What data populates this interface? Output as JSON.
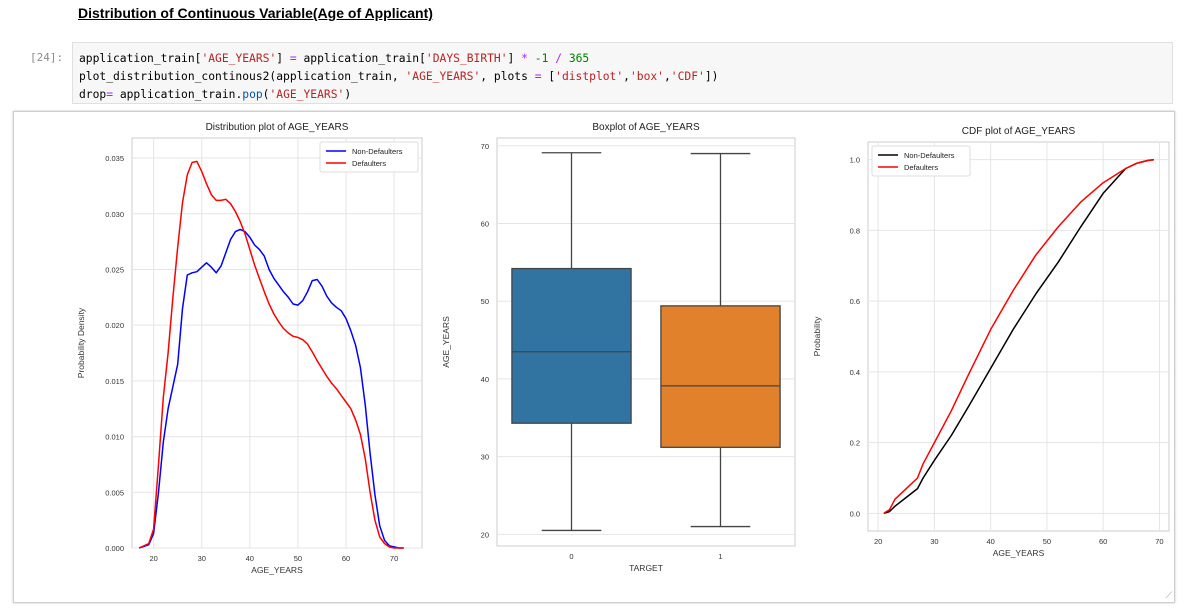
{
  "notebook": {
    "heading": "Distribution of Continuous Variable(Age of Applicant)",
    "prompt": "[24]:",
    "code_lines": [
      [
        [
          "application_train[",
          ""
        ],
        [
          "'AGE_YEARS'",
          "s"
        ],
        [
          "] ",
          ""
        ],
        [
          "=",
          "o"
        ],
        [
          " application_train[",
          ""
        ],
        [
          "'DAYS_BIRTH'",
          "s"
        ],
        [
          "] ",
          ""
        ],
        [
          "*",
          "o"
        ],
        [
          " ",
          ""
        ],
        [
          "-1",
          "n"
        ],
        [
          " ",
          ""
        ],
        [
          "/",
          "o"
        ],
        [
          " ",
          ""
        ],
        [
          "365",
          "n"
        ]
      ],
      [
        [
          "plot_distribution_continous2(application_train, ",
          ""
        ],
        [
          "'AGE_YEARS'",
          "s"
        ],
        [
          ", plots ",
          ""
        ],
        [
          "=",
          "o"
        ],
        [
          " [",
          ""
        ],
        [
          "'distplot'",
          "s"
        ],
        [
          ",",
          ""
        ],
        [
          "'box'",
          "s"
        ],
        [
          ",",
          ""
        ],
        [
          "'CDF'",
          "s"
        ],
        [
          "])",
          ""
        ]
      ],
      [
        [
          "drop",
          ""
        ],
        [
          "=",
          "o"
        ],
        [
          " application_train.",
          ""
        ],
        [
          "pop",
          "f"
        ],
        [
          "(",
          ""
        ],
        [
          "'AGE_YEARS'",
          "s"
        ],
        [
          ")",
          ""
        ]
      ]
    ]
  },
  "chart_data": [
    {
      "type": "line",
      "title": "Distribution plot of AGE_YEARS",
      "xlabel": "AGE_YEARS",
      "ylabel": "Probability Density",
      "xlim": [
        15.5,
        75.8
      ],
      "ylim": [
        0,
        0.0368
      ],
      "xticks": [
        20,
        30,
        40,
        50,
        60,
        70
      ],
      "yticks": [
        0.0,
        0.005,
        0.01,
        0.015,
        0.02,
        0.025,
        0.03,
        0.035
      ],
      "ytick_labels": [
        "0.000",
        "0.005",
        "0.010",
        "0.015",
        "0.020",
        "0.025",
        "0.030",
        "0.035"
      ],
      "grid": true,
      "legend": "top-right",
      "series": [
        {
          "name": "Non-Defaulters",
          "color": "#0000ff",
          "x": [
            17,
            19,
            20,
            21,
            22,
            23,
            24,
            25,
            26,
            27,
            28,
            29,
            30,
            31,
            32,
            33,
            34,
            35,
            36,
            37,
            38,
            39,
            40,
            41,
            42,
            43,
            44,
            45,
            46,
            47,
            48,
            49,
            50,
            51,
            52,
            53,
            54,
            55,
            56,
            57,
            58,
            59,
            60,
            61,
            62,
            63,
            64,
            65,
            66,
            67,
            68,
            69,
            70,
            71,
            72
          ],
          "y": [
            0,
            0.0003,
            0.0013,
            0.005,
            0.0095,
            0.0125,
            0.0145,
            0.0165,
            0.0215,
            0.0245,
            0.0247,
            0.0248,
            0.0252,
            0.0256,
            0.0252,
            0.0247,
            0.0253,
            0.0265,
            0.0277,
            0.0284,
            0.0286,
            0.0284,
            0.0279,
            0.0272,
            0.0268,
            0.0262,
            0.025,
            0.0242,
            0.0236,
            0.023,
            0.0225,
            0.0219,
            0.0218,
            0.0222,
            0.023,
            0.024,
            0.0241,
            0.0235,
            0.0226,
            0.022,
            0.0216,
            0.0213,
            0.0206,
            0.0195,
            0.0182,
            0.0162,
            0.0128,
            0.0085,
            0.0048,
            0.002,
            0.0007,
            0.0002,
            0.0001,
            0,
            0
          ]
        },
        {
          "name": "Defaulters",
          "color": "#ff0000",
          "x": [
            17,
            19,
            20,
            21,
            22,
            23,
            24,
            25,
            26,
            27,
            28,
            29,
            30,
            31,
            32,
            33,
            34,
            35,
            36,
            37,
            38,
            39,
            40,
            41,
            42,
            43,
            44,
            45,
            46,
            47,
            48,
            49,
            50,
            51,
            52,
            53,
            54,
            55,
            56,
            57,
            58,
            59,
            60,
            61,
            62,
            63,
            64,
            65,
            66,
            67,
            68,
            69,
            70,
            71,
            72
          ],
          "y": [
            0,
            0.0004,
            0.0017,
            0.0075,
            0.0135,
            0.0175,
            0.0225,
            0.027,
            0.031,
            0.0335,
            0.0346,
            0.0347,
            0.0338,
            0.0327,
            0.0317,
            0.0312,
            0.0312,
            0.0313,
            0.0309,
            0.0302,
            0.0293,
            0.0282,
            0.0268,
            0.0254,
            0.0242,
            0.023,
            0.0219,
            0.021,
            0.0203,
            0.0197,
            0.0193,
            0.019,
            0.0189,
            0.0187,
            0.0183,
            0.0176,
            0.0168,
            0.0161,
            0.0154,
            0.0148,
            0.0143,
            0.0137,
            0.0131,
            0.0125,
            0.0115,
            0.0102,
            0.008,
            0.005,
            0.0025,
            0.001,
            0.0004,
            0.0001,
            0,
            0,
            0
          ]
        }
      ]
    },
    {
      "type": "box",
      "title": "Boxplot of AGE_YEARS",
      "xlabel": "TARGET",
      "ylabel": "AGE_YEARS",
      "ylim": [
        18.5,
        71
      ],
      "yticks": [
        20,
        30,
        40,
        50,
        60,
        70
      ],
      "categories": [
        "0",
        "1"
      ],
      "grid": true,
      "boxes": [
        {
          "category": "0",
          "color": "#3274a1",
          "whisker_low": 20.5,
          "q1": 34.3,
          "median": 43.5,
          "q3": 54.2,
          "whisker_high": 69.1
        },
        {
          "category": "1",
          "color": "#e1812c",
          "whisker_low": 21.0,
          "q1": 31.2,
          "median": 39.1,
          "q3": 49.4,
          "whisker_high": 69.0
        }
      ]
    },
    {
      "type": "line",
      "title": "CDF plot of AGE_YEARS",
      "xlabel": "AGE_YEARS",
      "ylabel": "Probability",
      "xlim": [
        18.2,
        71.7
      ],
      "ylim": [
        -0.05,
        1.05
      ],
      "xticks": [
        20,
        30,
        40,
        50,
        60,
        70
      ],
      "yticks": [
        0.0,
        0.2,
        0.4,
        0.6,
        0.8,
        1.0
      ],
      "ytick_labels": [
        "0.0",
        "0.2",
        "0.4",
        "0.6",
        "0.8",
        "1.0"
      ],
      "grid": true,
      "legend": "top-left",
      "series": [
        {
          "name": "Non-Defaulters",
          "color": "#000000",
          "x": [
            21,
            22,
            23,
            25,
            27,
            28,
            30,
            33,
            36,
            40,
            44,
            48,
            52,
            56,
            60,
            64,
            66,
            68,
            69
          ],
          "y": [
            0.0,
            0.005,
            0.02,
            0.045,
            0.07,
            0.1,
            0.15,
            0.22,
            0.3,
            0.41,
            0.52,
            0.62,
            0.71,
            0.81,
            0.905,
            0.975,
            0.99,
            0.998,
            1.0
          ]
        },
        {
          "name": "Defaulters",
          "color": "#ff0000",
          "x": [
            21,
            22,
            23,
            25,
            27,
            28,
            30,
            33,
            36,
            40,
            44,
            48,
            52,
            56,
            60,
            64,
            66,
            68,
            69
          ],
          "y": [
            0.0,
            0.01,
            0.04,
            0.07,
            0.1,
            0.14,
            0.2,
            0.29,
            0.39,
            0.52,
            0.63,
            0.73,
            0.81,
            0.88,
            0.935,
            0.975,
            0.99,
            0.998,
            1.0
          ]
        }
      ]
    }
  ]
}
